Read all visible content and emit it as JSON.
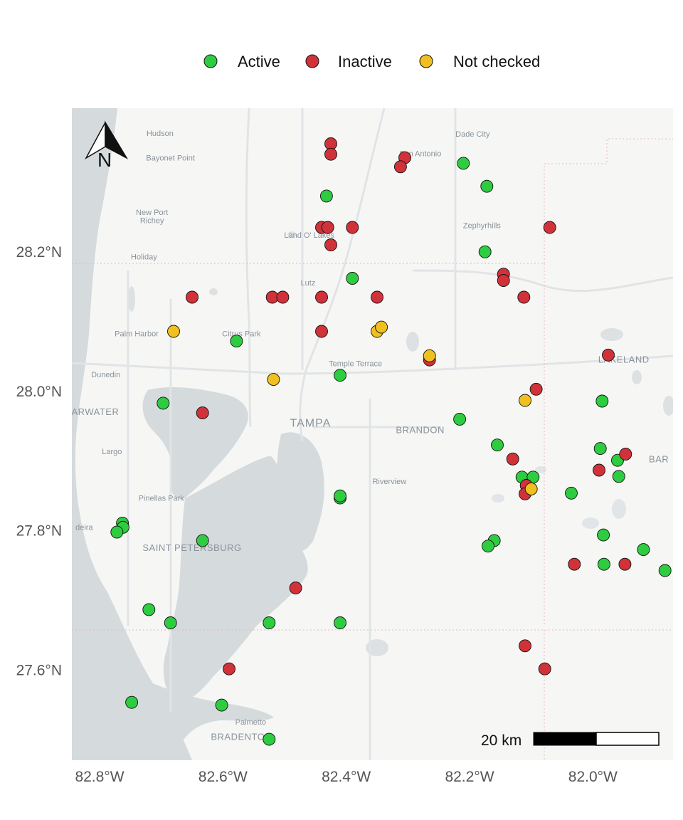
{
  "legend": {
    "items": [
      {
        "label": "Active",
        "color": "#2ecc40"
      },
      {
        "label": "Inactive",
        "color": "#d1323a"
      },
      {
        "label": "Not checked",
        "color": "#f0c020"
      }
    ]
  },
  "axes": {
    "x_ticks": [
      {
        "value": -82.8,
        "label": "82.8°W"
      },
      {
        "value": -82.6,
        "label": "82.6°W"
      },
      {
        "value": -82.4,
        "label": "82.4°W"
      },
      {
        "value": -82.2,
        "label": "82.2°W"
      },
      {
        "value": -82.0,
        "label": "82.0°W"
      }
    ],
    "y_ticks": [
      {
        "value": 28.2,
        "label": "28.2°N"
      },
      {
        "value": 28.0,
        "label": "28.0°N"
      },
      {
        "value": 27.8,
        "label": "27.8°N"
      },
      {
        "value": 27.6,
        "label": "27.6°N"
      }
    ],
    "lon_range": [
      -82.845,
      -81.87
    ],
    "lat_range": [
      27.47,
      28.405
    ]
  },
  "north_arrow": {
    "label": "N"
  },
  "scale_bar": {
    "label": "20 km"
  },
  "places": [
    {
      "name": "Hudson",
      "lon": -82.702,
      "lat": 28.365,
      "size": "small"
    },
    {
      "name": "Bayonet Point",
      "lon": -82.685,
      "lat": 28.33,
      "size": "small"
    },
    {
      "name": "Dade City",
      "lon": -82.195,
      "lat": 28.364,
      "size": "small"
    },
    {
      "name": "San Antonio",
      "lon": -82.28,
      "lat": 28.336,
      "size": "small"
    },
    {
      "name": "New Port",
      "lon": -82.715,
      "lat": 28.252,
      "size": "small"
    },
    {
      "name": "Richey",
      "lon": -82.715,
      "lat": 28.24,
      "size": "small"
    },
    {
      "name": "Zephyrhills",
      "lon": -82.18,
      "lat": 28.233,
      "size": "small"
    },
    {
      "name": "Land O' Lakes",
      "lon": -82.46,
      "lat": 28.219,
      "size": "small"
    },
    {
      "name": "Holiday",
      "lon": -82.728,
      "lat": 28.188,
      "size": "small"
    },
    {
      "name": "Lutz",
      "lon": -82.462,
      "lat": 28.151,
      "size": "small"
    },
    {
      "name": "Palm Harbor",
      "lon": -82.74,
      "lat": 28.078,
      "size": "small"
    },
    {
      "name": "Citrus Park",
      "lon": -82.57,
      "lat": 28.078,
      "size": "small"
    },
    {
      "name": "Temple Terrace",
      "lon": -82.385,
      "lat": 28.035,
      "size": "small"
    },
    {
      "name": "LAKELAND",
      "lon": -81.95,
      "lat": 28.04,
      "size": "mid"
    },
    {
      "name": "Dunedin",
      "lon": -82.79,
      "lat": 28.019,
      "size": "small"
    },
    {
      "name": "ARWATER",
      "lon": -82.807,
      "lat": 27.965,
      "size": "mid"
    },
    {
      "name": "TAMPA",
      "lon": -82.458,
      "lat": 27.948,
      "size": "big"
    },
    {
      "name": "BRANDON",
      "lon": -82.28,
      "lat": 27.939,
      "size": "mid"
    },
    {
      "name": "BAR",
      "lon": -81.893,
      "lat": 27.897,
      "size": "mid"
    },
    {
      "name": "Largo",
      "lon": -82.78,
      "lat": 27.909,
      "size": "small"
    },
    {
      "name": "Riverview",
      "lon": -82.33,
      "lat": 27.866,
      "size": "small"
    },
    {
      "name": "Pinellas Park",
      "lon": -82.7,
      "lat": 27.842,
      "size": "small"
    },
    {
      "name": "deira",
      "lon": -82.825,
      "lat": 27.8,
      "size": "small"
    },
    {
      "name": "SAINT PETERSBURG",
      "lon": -82.65,
      "lat": 27.77,
      "size": "mid"
    },
    {
      "name": "Palmetto",
      "lon": -82.555,
      "lat": 27.521,
      "size": "small"
    },
    {
      "name": "BRADENTON",
      "lon": -82.57,
      "lat": 27.499,
      "size": "mid"
    }
  ],
  "chart_data": {
    "type": "scatter",
    "x_label": "",
    "y_label": "",
    "series": [
      {
        "name": "Active",
        "color": "#2ecc40",
        "points": [
          [
            -82.432,
            28.279
          ],
          [
            -82.21,
            28.326
          ],
          [
            -82.172,
            28.293
          ],
          [
            -82.175,
            28.199
          ],
          [
            -82.39,
            28.161
          ],
          [
            -82.578,
            28.071
          ],
          [
            -82.41,
            28.022
          ],
          [
            -82.697,
            27.982
          ],
          [
            -82.216,
            27.959
          ],
          [
            -81.985,
            27.985
          ],
          [
            -82.155,
            27.922
          ],
          [
            -82.115,
            27.876
          ],
          [
            -82.097,
            27.876
          ],
          [
            -81.988,
            27.917
          ],
          [
            -81.96,
            27.9
          ],
          [
            -81.958,
            27.877
          ],
          [
            -82.035,
            27.853
          ],
          [
            -82.41,
            27.846
          ],
          [
            -82.41,
            27.849
          ],
          [
            -82.763,
            27.81
          ],
          [
            -82.762,
            27.804
          ],
          [
            -82.772,
            27.797
          ],
          [
            -82.633,
            27.785
          ],
          [
            -82.16,
            27.785
          ],
          [
            -82.17,
            27.777
          ],
          [
            -81.983,
            27.793
          ],
          [
            -81.918,
            27.772
          ],
          [
            -81.982,
            27.751
          ],
          [
            -81.883,
            27.742
          ],
          [
            -82.72,
            27.686
          ],
          [
            -82.685,
            27.667
          ],
          [
            -82.525,
            27.667
          ],
          [
            -82.41,
            27.667
          ],
          [
            -82.748,
            27.553
          ],
          [
            -82.602,
            27.549
          ],
          [
            -82.525,
            27.5
          ]
        ]
      },
      {
        "name": "Inactive",
        "color": "#d1323a",
        "points": [
          [
            -82.425,
            28.354
          ],
          [
            -82.425,
            28.339
          ],
          [
            -82.305,
            28.334
          ],
          [
            -82.312,
            28.321
          ],
          [
            -82.44,
            28.234
          ],
          [
            -82.43,
            28.234
          ],
          [
            -82.39,
            28.234
          ],
          [
            -82.07,
            28.234
          ],
          [
            -82.425,
            28.209
          ],
          [
            -82.145,
            28.167
          ],
          [
            -82.145,
            28.158
          ],
          [
            -82.112,
            28.134
          ],
          [
            -82.65,
            28.134
          ],
          [
            -82.52,
            28.134
          ],
          [
            -82.503,
            28.134
          ],
          [
            -82.44,
            28.134
          ],
          [
            -82.35,
            28.134
          ],
          [
            -82.44,
            28.085
          ],
          [
            -82.265,
            28.044
          ],
          [
            -81.975,
            28.051
          ],
          [
            -82.092,
            28.002
          ],
          [
            -82.633,
            27.968
          ],
          [
            -82.13,
            27.902
          ],
          [
            -81.947,
            27.909
          ],
          [
            -81.99,
            27.886
          ],
          [
            -82.108,
            27.864
          ],
          [
            -82.11,
            27.852
          ],
          [
            -82.482,
            27.717
          ],
          [
            -82.03,
            27.751
          ],
          [
            -81.948,
            27.751
          ],
          [
            -82.11,
            27.634
          ],
          [
            -82.078,
            27.601
          ],
          [
            -82.59,
            27.601
          ]
        ]
      },
      {
        "name": "Not checked",
        "color": "#f0c020",
        "points": [
          [
            -82.68,
            28.085
          ],
          [
            -82.35,
            28.085
          ],
          [
            -82.343,
            28.091
          ],
          [
            -82.265,
            28.05
          ],
          [
            -82.518,
            28.016
          ],
          [
            -82.11,
            27.986
          ],
          [
            -82.1,
            27.859
          ]
        ]
      }
    ]
  }
}
